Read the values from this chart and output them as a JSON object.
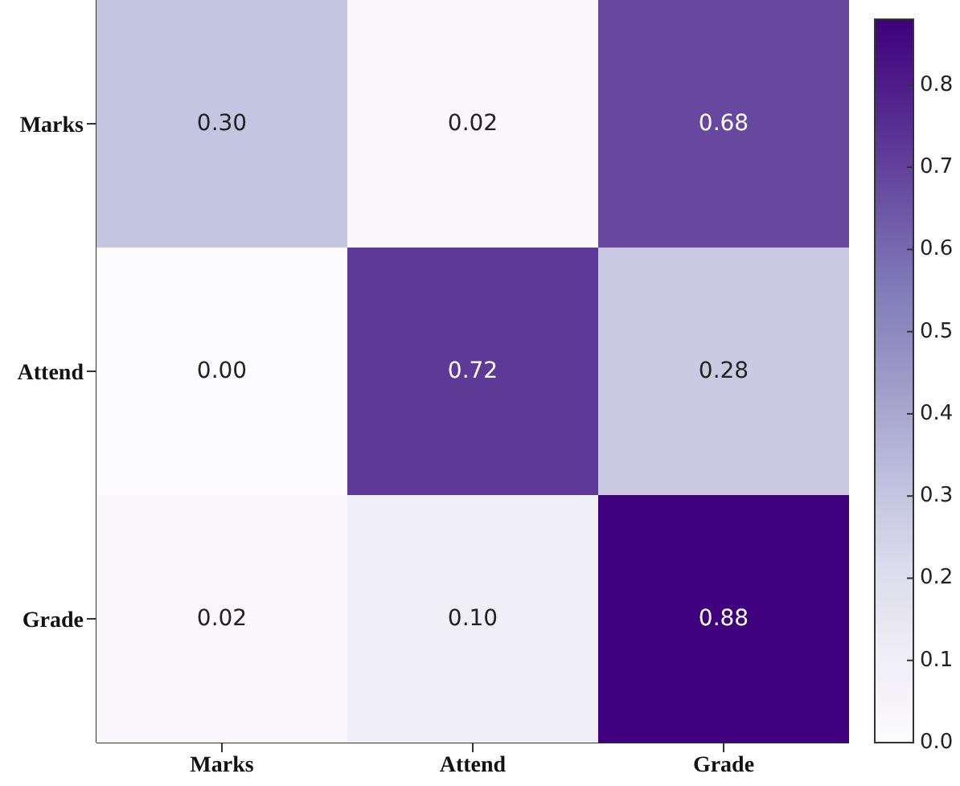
{
  "chart_data": {
    "type": "heatmap",
    "categories": [
      "Marks",
      "Attend",
      "Grade"
    ],
    "y_categories": [
      "Marks",
      "Attend",
      "Grade"
    ],
    "cells": [
      [
        0.3,
        0.02,
        0.68
      ],
      [
        0.0,
        0.72,
        0.28
      ],
      [
        0.02,
        0.1,
        0.88
      ]
    ],
    "cell_labels": [
      [
        "0.30",
        "0.02",
        "0.68"
      ],
      [
        "0.00",
        "0.72",
        "0.28"
      ],
      [
        "0.02",
        "0.10",
        "0.88"
      ]
    ],
    "clim": [
      0,
      0.88
    ],
    "cticks": [
      {
        "value": 0,
        "label": "0.0"
      },
      0.1,
      0.2,
      0.3,
      0.4,
      0.5,
      0.6,
      0.7,
      0.8
    ]
  }
}
